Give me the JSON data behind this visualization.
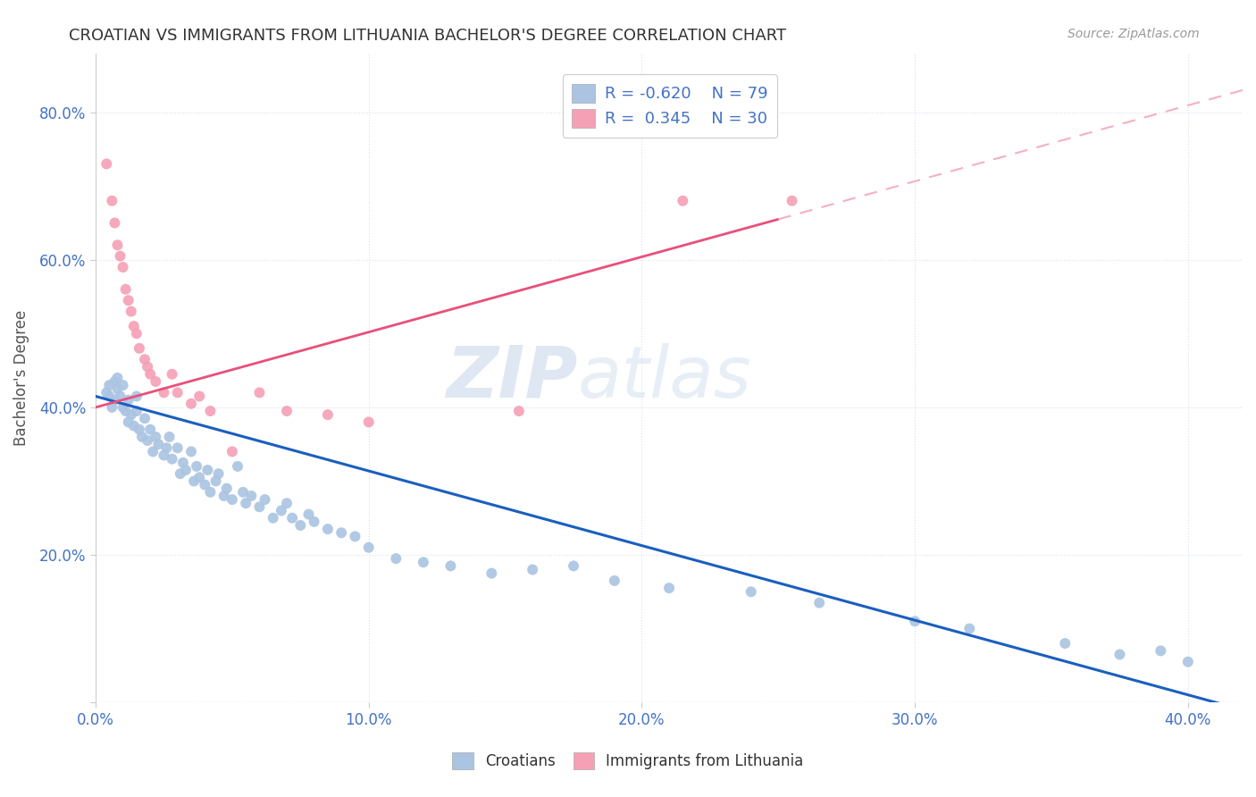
{
  "title": "CROATIAN VS IMMIGRANTS FROM LITHUANIA BACHELOR'S DEGREE CORRELATION CHART",
  "source": "Source: ZipAtlas.com",
  "ylabel": "Bachelor's Degree",
  "watermark_zip": "ZIP",
  "watermark_atlas": "atlas",
  "xlim": [
    0.0,
    0.42
  ],
  "ylim": [
    0.0,
    0.88
  ],
  "xticks": [
    0.0,
    0.1,
    0.2,
    0.3,
    0.4
  ],
  "yticks": [
    0.0,
    0.2,
    0.4,
    0.6,
    0.8
  ],
  "croatian_R": -0.62,
  "croatian_N": 79,
  "lithuania_R": 0.345,
  "lithuania_N": 30,
  "croatian_color": "#aac4e2",
  "lithuania_color": "#f5a0b5",
  "trendline_croatian_color": "#1a5fbf",
  "trendline_lithuania_solid_color": "#e8507a",
  "trendline_lithuania_dashed_color": "#f5b0c0",
  "legend_text_color": "#4472c4",
  "background_color": "#ffffff",
  "grid_color": "#d8e0ee",
  "croatian_trendline_x0": 0.0,
  "croatian_trendline_y0": 0.415,
  "croatian_trendline_x1": 0.42,
  "croatian_trendline_y1": -0.01,
  "lithuania_trendline_x0": 0.0,
  "lithuania_trendline_y0": 0.4,
  "lithuania_trendline_x1_solid": 0.25,
  "lithuania_trendline_y1_solid": 0.655,
  "lithuania_trendline_x1_dashed": 0.42,
  "lithuania_trendline_y1_dashed": 0.83,
  "croatian_x": [
    0.004,
    0.005,
    0.005,
    0.006,
    0.007,
    0.007,
    0.008,
    0.008,
    0.009,
    0.01,
    0.01,
    0.011,
    0.012,
    0.012,
    0.013,
    0.014,
    0.015,
    0.015,
    0.016,
    0.017,
    0.018,
    0.019,
    0.02,
    0.021,
    0.022,
    0.023,
    0.025,
    0.026,
    0.027,
    0.028,
    0.03,
    0.031,
    0.032,
    0.033,
    0.035,
    0.036,
    0.037,
    0.038,
    0.04,
    0.041,
    0.042,
    0.044,
    0.045,
    0.047,
    0.048,
    0.05,
    0.052,
    0.054,
    0.055,
    0.057,
    0.06,
    0.062,
    0.065,
    0.068,
    0.07,
    0.072,
    0.075,
    0.078,
    0.08,
    0.085,
    0.09,
    0.095,
    0.1,
    0.11,
    0.12,
    0.13,
    0.145,
    0.16,
    0.175,
    0.19,
    0.21,
    0.24,
    0.265,
    0.3,
    0.32,
    0.355,
    0.375,
    0.39,
    0.4
  ],
  "croatian_y": [
    0.42,
    0.415,
    0.43,
    0.4,
    0.435,
    0.41,
    0.44,
    0.425,
    0.415,
    0.4,
    0.43,
    0.395,
    0.38,
    0.41,
    0.39,
    0.375,
    0.395,
    0.415,
    0.37,
    0.36,
    0.385,
    0.355,
    0.37,
    0.34,
    0.36,
    0.35,
    0.335,
    0.345,
    0.36,
    0.33,
    0.345,
    0.31,
    0.325,
    0.315,
    0.34,
    0.3,
    0.32,
    0.305,
    0.295,
    0.315,
    0.285,
    0.3,
    0.31,
    0.28,
    0.29,
    0.275,
    0.32,
    0.285,
    0.27,
    0.28,
    0.265,
    0.275,
    0.25,
    0.26,
    0.27,
    0.25,
    0.24,
    0.255,
    0.245,
    0.235,
    0.23,
    0.225,
    0.21,
    0.195,
    0.19,
    0.185,
    0.175,
    0.18,
    0.185,
    0.165,
    0.155,
    0.15,
    0.135,
    0.11,
    0.1,
    0.08,
    0.065,
    0.07,
    0.055
  ],
  "lithuania_x": [
    0.004,
    0.006,
    0.007,
    0.008,
    0.009,
    0.01,
    0.011,
    0.012,
    0.013,
    0.014,
    0.015,
    0.016,
    0.018,
    0.019,
    0.02,
    0.022,
    0.025,
    0.028,
    0.03,
    0.035,
    0.038,
    0.042,
    0.05,
    0.06,
    0.07,
    0.085,
    0.1,
    0.155,
    0.215,
    0.255
  ],
  "lithuania_y": [
    0.73,
    0.68,
    0.65,
    0.62,
    0.605,
    0.59,
    0.56,
    0.545,
    0.53,
    0.51,
    0.5,
    0.48,
    0.465,
    0.455,
    0.445,
    0.435,
    0.42,
    0.445,
    0.42,
    0.405,
    0.415,
    0.395,
    0.34,
    0.42,
    0.395,
    0.39,
    0.38,
    0.395,
    0.68,
    0.68
  ]
}
